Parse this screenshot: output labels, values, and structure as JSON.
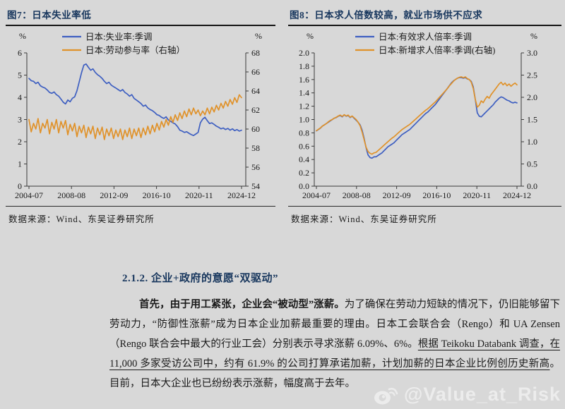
{
  "page": {
    "background": "#d8d8d8",
    "watermark": {
      "handle": "@Value_at_Risk",
      "icon": "weibo-icon",
      "color": "#ececec"
    }
  },
  "chart_data": [
    {
      "id": "figure7",
      "type": "line",
      "title": "图7：日本失业率低",
      "source": "数据来源：Wind、东吴证券研究所",
      "grid": false,
      "legend_position": "top-center",
      "x_tick_labels": [
        "2004-07",
        "2008-08",
        "2012-09",
        "2016-10",
        "2020-11",
        "2024-12"
      ],
      "left_axis": {
        "unit": "%",
        "min": 0,
        "max": 6,
        "tick_labels": [
          "0",
          "1",
          "2",
          "3",
          "4",
          "5",
          "6"
        ]
      },
      "right_axis": {
        "unit": "%",
        "min": 54,
        "max": 68,
        "tick_labels": [
          "54",
          "56",
          "58",
          "60",
          "62",
          "64",
          "66",
          "68"
        ]
      },
      "series": [
        {
          "name": "日本:失业率:季调",
          "axis": "left",
          "color": "#3e5fc1",
          "values": [
            4.85,
            4.75,
            4.72,
            4.62,
            4.68,
            4.52,
            4.46,
            4.42,
            4.33,
            4.22,
            4.18,
            4.24,
            4.12,
            4.05,
            3.92,
            3.78,
            3.7,
            3.88,
            3.8,
            3.96,
            4.02,
            4.3,
            4.7,
            5.1,
            5.45,
            5.5,
            5.35,
            5.22,
            5.28,
            5.12,
            5.02,
            4.95,
            4.85,
            4.72,
            4.62,
            4.68,
            4.55,
            4.48,
            4.42,
            4.35,
            4.28,
            4.35,
            4.22,
            4.15,
            4.05,
            4.12,
            3.95,
            3.88,
            3.8,
            3.72,
            3.6,
            3.65,
            3.52,
            3.45,
            3.4,
            3.32,
            3.22,
            3.18,
            3.1,
            3.05,
            3.12,
            2.98,
            2.92,
            2.85,
            2.8,
            2.68,
            2.52,
            2.48,
            2.42,
            2.45,
            2.38,
            2.32,
            2.28,
            2.35,
            2.42,
            2.85,
            3.02,
            3.1,
            2.95,
            2.82,
            2.85,
            2.78,
            2.7,
            2.65,
            2.58,
            2.62,
            2.55,
            2.6,
            2.52,
            2.58,
            2.5,
            2.55,
            2.48,
            2.52
          ]
        },
        {
          "name": "日本:劳动参与率（右轴）",
          "axis": "right",
          "color": "#e0922a",
          "values": [
            61.0,
            59.7,
            60.6,
            60.0,
            61.1,
            59.6,
            60.6,
            60.1,
            61.0,
            59.5,
            60.7,
            60.0,
            61.0,
            59.6,
            60.8,
            60.1,
            60.9,
            59.4,
            60.5,
            59.8,
            60.6,
            59.2,
            60.3,
            59.6,
            60.4,
            59.1,
            60.2,
            59.5,
            60.3,
            59.0,
            60.1,
            59.4,
            60.2,
            58.9,
            60.0,
            59.3,
            60.1,
            59.0,
            59.9,
            59.2,
            60.0,
            58.9,
            59.9,
            59.2,
            60.1,
            59.0,
            60.0,
            59.3,
            60.1,
            59.1,
            60.1,
            59.4,
            60.3,
            59.5,
            60.4,
            59.7,
            60.6,
            59.9,
            60.8,
            60.2,
            61.0,
            60.4,
            61.3,
            60.7,
            61.5,
            60.9,
            61.7,
            61.1,
            61.9,
            61.3,
            62.1,
            61.5,
            62.2,
            61.6,
            62.0,
            61.4,
            61.9,
            61.5,
            62.2,
            61.6,
            62.3,
            61.8,
            62.5,
            62.0,
            62.7,
            62.2,
            62.9,
            62.4,
            63.1,
            62.6,
            63.3,
            62.8,
            63.6,
            63.3
          ]
        }
      ]
    },
    {
      "id": "figure8",
      "type": "line",
      "title": "图8：日本求人倍数较高，就业市场供不应求",
      "source": "数据来源：Wind、东吴证券研究所",
      "grid": false,
      "legend_position": "top-center",
      "x_tick_labels": [
        "2004-07",
        "2008-08",
        "2012-09",
        "2016-10",
        "2020-11",
        "2024-12"
      ],
      "left_axis": {
        "unit": "%",
        "min": 0,
        "max": 2.0,
        "tick_labels": [
          "0.0",
          "0.2",
          "0.4",
          "0.6",
          "0.8",
          "1.0",
          "1.2",
          "1.4",
          "1.6",
          "1.8",
          "2.0"
        ]
      },
      "right_axis": {
        "unit": "%",
        "min": 0,
        "max": 3.0,
        "tick_labels": [
          "0.0",
          "0.5",
          "1.0",
          "1.5",
          "2.0",
          "2.5",
          "3.0"
        ]
      },
      "series": [
        {
          "name": "日本:有效求人倍率:季调",
          "axis": "left",
          "color": "#3e5fc1",
          "values": [
            0.83,
            0.85,
            0.87,
            0.9,
            0.92,
            0.94,
            0.96,
            0.98,
            1.0,
            1.02,
            1.03,
            1.05,
            1.06,
            1.04,
            1.07,
            1.05,
            1.06,
            1.03,
            1.05,
            1.02,
            0.99,
            0.96,
            0.92,
            0.84,
            0.72,
            0.58,
            0.47,
            0.43,
            0.42,
            0.44,
            0.44,
            0.46,
            0.48,
            0.5,
            0.53,
            0.56,
            0.59,
            0.61,
            0.63,
            0.65,
            0.68,
            0.71,
            0.74,
            0.77,
            0.79,
            0.81,
            0.83,
            0.85,
            0.88,
            0.91,
            0.94,
            0.97,
            1.0,
            1.03,
            1.06,
            1.09,
            1.11,
            1.14,
            1.17,
            1.2,
            1.23,
            1.27,
            1.31,
            1.35,
            1.39,
            1.43,
            1.47,
            1.51,
            1.55,
            1.58,
            1.6,
            1.62,
            1.63,
            1.63,
            1.62,
            1.63,
            1.61,
            1.6,
            1.57,
            1.49,
            1.3,
            1.1,
            1.05,
            1.04,
            1.07,
            1.1,
            1.13,
            1.16,
            1.19,
            1.22,
            1.26,
            1.29,
            1.32,
            1.34,
            1.33,
            1.31,
            1.29,
            1.28,
            1.26,
            1.25,
            1.26,
            1.25
          ]
        },
        {
          "name": "日本:新增求人倍率:季调(右轴)",
          "axis": "right",
          "color": "#e0922a",
          "values": [
            1.25,
            1.28,
            1.31,
            1.35,
            1.38,
            1.41,
            1.45,
            1.48,
            1.5,
            1.53,
            1.55,
            1.58,
            1.6,
            1.57,
            1.61,
            1.58,
            1.6,
            1.55,
            1.58,
            1.54,
            1.5,
            1.44,
            1.36,
            1.22,
            1.05,
            0.88,
            0.78,
            0.74,
            0.72,
            0.75,
            0.76,
            0.8,
            0.84,
            0.88,
            0.92,
            0.96,
            1.0,
            1.04,
            1.08,
            1.11,
            1.15,
            1.19,
            1.23,
            1.27,
            1.3,
            1.33,
            1.36,
            1.39,
            1.43,
            1.47,
            1.51,
            1.55,
            1.59,
            1.63,
            1.67,
            1.71,
            1.74,
            1.78,
            1.82,
            1.86,
            1.9,
            1.95,
            2.0,
            2.05,
            2.1,
            2.15,
            2.2,
            2.26,
            2.31,
            2.36,
            2.4,
            2.43,
            2.45,
            2.46,
            2.44,
            2.46,
            2.42,
            2.4,
            2.34,
            2.2,
            1.95,
            1.78,
            1.82,
            1.92,
            1.88,
            1.96,
            2.02,
            1.98,
            2.06,
            2.12,
            2.18,
            2.24,
            2.3,
            2.34,
            2.28,
            2.32,
            2.26,
            2.3,
            2.25,
            2.29,
            2.32,
            2.28
          ]
        }
      ]
    }
  ],
  "section": {
    "heading": "2.1.2. 企业+政府的意愿“双驱动”",
    "paragraph_segments": [
      {
        "style": "bold",
        "text": "首先，由于用工紧张，企业会“被动型”涨薪。"
      },
      {
        "style": "normal",
        "text": "为了确保在劳动力短缺的情况下，仍旧能够留下劳动力，“防御性涨薪”成为日本企业加薪最重要的理由。日本工会联合会（Rengo）和 UA Zensen（Rengo 联合会中最大的行业工会）分别表示寻求涨薪 6.09%、6%。"
      },
      {
        "style": "underline",
        "text": "根据 Teikoku Databank 调查，在 11,000 多家受访公司中，约有 61.9% 的公司打算承诺加薪，计划加薪的日本企业比例创历史新高"
      },
      {
        "style": "normal",
        "text": "。目前，日本大企业也已纷纷表示涨薪，幅度高于去年。"
      }
    ]
  }
}
